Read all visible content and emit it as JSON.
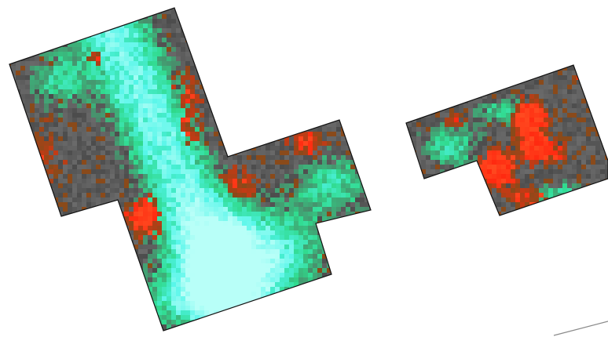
{
  "map": {
    "background_color": "#ffffff",
    "outline_color": "#111111",
    "palette": {
      "low": "#5a5a5a",
      "low_mid": "#8a4a1a",
      "high": "#ff2a10",
      "green": "#2fd98a",
      "cyan": "#4ff5e8",
      "pale": "#b8fff8"
    },
    "parcels": [
      {
        "id": "parcel-west",
        "dominant": "green"
      },
      {
        "id": "parcel-east",
        "dominant": "mixed"
      }
    ],
    "scale_line": {
      "visible": true,
      "color": "#888888"
    }
  }
}
